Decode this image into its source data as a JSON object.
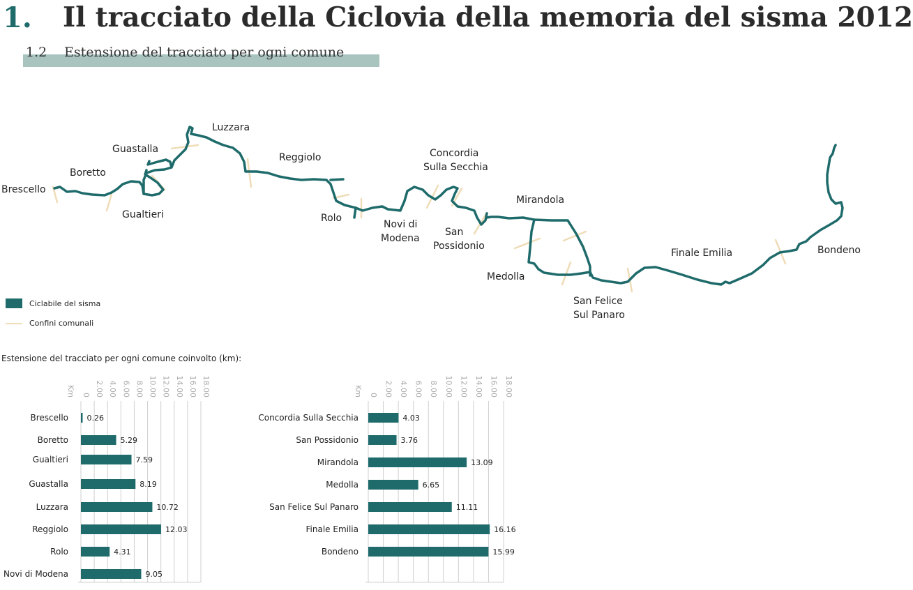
{
  "header": {
    "number": "1.",
    "title": "Il tracciato della Ciclovia della memoria del sisma 2012",
    "sub_number": "1.2",
    "subtitle": "Estensione del tracciato per ogni comune"
  },
  "map": {
    "places": [
      "Brescello",
      "Boretto",
      "Guastalla",
      "Gualtieri",
      "Luzzara",
      "Reggiolo",
      "Rolo",
      "Novi di",
      "Modena",
      "Concordia",
      "Sulla Secchia",
      "San",
      "Possidonio",
      "Mirandola",
      "Medolla",
      "San Felice",
      "Sul Panaro",
      "Finale Emilia",
      "Bondeno"
    ]
  },
  "legend": {
    "route": "Ciclabile del sisma",
    "boundaries": "Confini comunali"
  },
  "colors": {
    "route": "#1f6b6b",
    "boundary": "#efdcb8",
    "band": "#a9c4bf",
    "grid": "#cfcfcf"
  },
  "chart_caption": "Estensione del tracciato per ogni comune coinvolto (km):",
  "chart_data": [
    {
      "type": "bar",
      "orientation": "horizontal",
      "unit_label": "Km",
      "ticks": [
        "0",
        "2.00",
        "4.00",
        "6.00",
        "8.00",
        "10.00",
        "12.00",
        "14.00",
        "16.00",
        "18.00"
      ],
      "xlim": [
        0,
        18
      ],
      "categories": [
        "Brescello",
        "Boretto",
        "Gualtieri",
        "Guastalla",
        "Luzzara",
        "Reggiolo",
        "Rolo",
        "Novi di Modena"
      ],
      "values": [
        0.26,
        5.29,
        7.59,
        8.19,
        10.72,
        12.03,
        4.31,
        9.05
      ],
      "labels": [
        "0.26",
        "5.29",
        "7.59",
        "8.19",
        "10.72",
        "12.03",
        "4.31",
        "9.05"
      ]
    },
    {
      "type": "bar",
      "orientation": "horizontal",
      "unit_label": "Km",
      "ticks": [
        "0",
        "2.00",
        "4.00",
        "6.00",
        "8.00",
        "10.00",
        "12.00",
        "14.00",
        "16.00",
        "18.00"
      ],
      "xlim": [
        0,
        18
      ],
      "categories": [
        "Concordia Sulla Secchia",
        "San Possidonio",
        "Mirandola",
        "Medolla",
        "San Felice Sul Panaro",
        "Finale Emilia",
        "Bondeno"
      ],
      "values": [
        4.03,
        3.76,
        13.09,
        6.65,
        11.11,
        16.16,
        15.99
      ],
      "labels": [
        "4.03",
        "3.76",
        "13.09",
        "6.65",
        "11.11",
        "16.16",
        "15.99"
      ]
    }
  ]
}
